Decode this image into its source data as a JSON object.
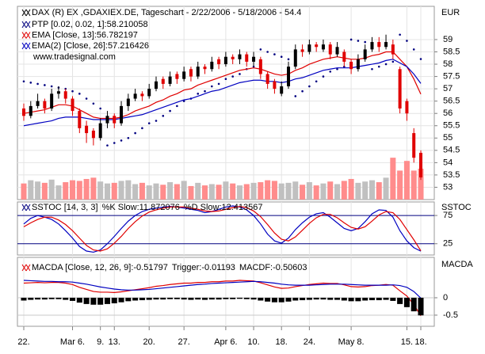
{
  "chart_data": [
    {
      "type": "candlestick",
      "title": "DAX (R) EX ,GDAXIEX.DE, Tageschart - 2/22/2006 - 5/18/2006 - 54.4",
      "watermark": "www.tradesignal.com",
      "unit_label": "EUR",
      "open": [
        56.2,
        55.9,
        56.3,
        56.5,
        56.2,
        56.8,
        56.9,
        56.6,
        56.1,
        55.5,
        55.3,
        55.0,
        55.6,
        55.9,
        55.6,
        56.3,
        56.6,
        56.8,
        56.7,
        57.0,
        57.4,
        57.2,
        57.6,
        57.4,
        57.8,
        57.5,
        57.9,
        57.8,
        58.2,
        58.0,
        58.3,
        58.2,
        58.4,
        58.1,
        58.2,
        57.6,
        57.3,
        56.8,
        57.1,
        57.9,
        58.6,
        58.5,
        58.8,
        58.6,
        58.8,
        58.4,
        58.5,
        58.1,
        57.8,
        58.2,
        58.6,
        58.9,
        58.7,
        58.8,
        57.8,
        56.5,
        55.2,
        54.4
      ],
      "high": [
        56.4,
        56.5,
        56.8,
        56.6,
        57.0,
        57.1,
        57.0,
        56.7,
        56.2,
        55.7,
        55.4,
        55.8,
        56.1,
        56.0,
        56.5,
        56.8,
        57.0,
        56.9,
        57.2,
        57.5,
        57.5,
        57.7,
        57.7,
        57.9,
        57.9,
        58.1,
        58.0,
        58.3,
        58.3,
        58.5,
        58.4,
        58.6,
        58.5,
        58.5,
        58.3,
        57.7,
        57.4,
        57.3,
        58.1,
        58.8,
        58.8,
        59.0,
        58.9,
        59.0,
        58.9,
        58.9,
        58.6,
        58.2,
        58.4,
        58.8,
        59.1,
        59.1,
        59.2,
        59.0,
        57.9,
        56.6,
        55.4,
        54.5
      ],
      "low": [
        55.7,
        55.8,
        56.2,
        56.0,
        56.1,
        56.6,
        56.4,
        55.9,
        55.2,
        54.8,
        54.7,
        54.9,
        55.4,
        55.4,
        55.5,
        56.1,
        56.5,
        56.5,
        56.6,
        56.9,
        57.0,
        57.1,
        57.2,
        57.3,
        57.3,
        57.4,
        57.6,
        57.7,
        57.8,
        57.9,
        58.0,
        58.0,
        57.9,
        57.9,
        57.4,
        57.0,
        56.8,
        56.7,
        57.0,
        57.8,
        58.3,
        58.4,
        58.5,
        58.5,
        58.2,
        58.3,
        57.9,
        57.6,
        57.7,
        58.1,
        58.5,
        58.5,
        58.6,
        58.2,
        56.0,
        55.7,
        54.0,
        53.3
      ],
      "close": [
        55.9,
        56.3,
        56.5,
        56.2,
        56.8,
        56.9,
        56.6,
        56.1,
        55.4,
        55.2,
        55.0,
        55.6,
        55.9,
        55.6,
        56.3,
        56.6,
        56.8,
        56.7,
        57.0,
        57.3,
        57.2,
        57.5,
        57.4,
        57.7,
        57.5,
        57.9,
        57.8,
        58.1,
        58.0,
        58.3,
        58.2,
        58.4,
        58.1,
        58.3,
        57.6,
        57.2,
        57.0,
        57.1,
        57.9,
        58.6,
        58.5,
        58.8,
        58.7,
        58.8,
        58.4,
        58.7,
        58.1,
        57.8,
        58.2,
        58.6,
        58.9,
        58.7,
        58.9,
        58.4,
        56.2,
        56.0,
        54.2,
        53.4
      ],
      "up_color": "#000000",
      "down_color": "#e00000",
      "volume": [
        2.5,
        3.0,
        2.8,
        2.6,
        3.1,
        2.2,
        2.7,
        3.0,
        2.9,
        3.2,
        3.4,
        2.8,
        2.5,
        2.6,
        2.9,
        3.0,
        2.4,
        2.6,
        2.2,
        2.5,
        2.3,
        2.7,
        2.4,
        2.9,
        2.1,
        2.6,
        2.2,
        2.4,
        2.3,
        2.8,
        2.5,
        2.2,
        2.4,
        2.6,
        2.7,
        3.0,
        2.9,
        2.5,
        2.6,
        2.8,
        2.3,
        2.7,
        2.2,
        2.5,
        2.8,
        2.4,
        2.9,
        3.2,
        2.6,
        2.8,
        3.0,
        2.7,
        3.4,
        6.5,
        4.5,
        6.0,
        4.5,
        4.8
      ],
      "volume_lim": [
        0,
        30
      ],
      "volume_up_color": "#c0c0c0",
      "volume_down_color": "#ff8c8c",
      "series": [
        {
          "name": "PTP [0.02, 0.02, 1]:58.210058",
          "style": "dots",
          "color": "#000080",
          "values": [
            57.3,
            57.25,
            57.2,
            57.15,
            57.1,
            57.05,
            57.0,
            56.9,
            56.8,
            56.6,
            56.4,
            56.2,
            54.7,
            54.8,
            54.9,
            55.0,
            55.2,
            55.4,
            55.6,
            55.7,
            55.9,
            56.1,
            56.3,
            56.5,
            56.6,
            56.8,
            56.9,
            57.1,
            57.2,
            57.4,
            57.5,
            57.6,
            57.8,
            57.9,
            58.6,
            58.5,
            58.4,
            58.3,
            58.2,
            56.7,
            56.9,
            57.1,
            57.3,
            57.5,
            57.7,
            57.8,
            57.9,
            59.0,
            58.95,
            58.9,
            57.8,
            57.9,
            58.0,
            58.1,
            59.2,
            58.95,
            58.6,
            58.210058
          ]
        },
        {
          "name": "EMA [Close, 13]:56.782197",
          "style": "line",
          "color": "#e00000",
          "values": [
            56.0,
            56.05,
            56.1,
            56.15,
            56.25,
            56.35,
            56.35,
            56.3,
            56.15,
            56.0,
            55.85,
            55.8,
            55.8,
            55.8,
            55.85,
            55.95,
            56.1,
            56.2,
            56.3,
            56.45,
            56.55,
            56.7,
            56.8,
            56.95,
            57.0,
            57.15,
            57.25,
            57.35,
            57.45,
            57.55,
            57.65,
            57.75,
            57.8,
            57.85,
            57.8,
            57.7,
            57.6,
            57.55,
            57.6,
            57.75,
            57.85,
            58.0,
            58.1,
            58.2,
            58.25,
            58.3,
            58.25,
            58.2,
            58.2,
            58.25,
            58.35,
            58.4,
            58.5,
            58.5,
            58.2,
            57.9,
            57.4,
            56.782197
          ]
        },
        {
          "name": "EMA(2) [Close, 26]:57.216426",
          "style": "line",
          "color": "#0000c0",
          "values": [
            55.5,
            55.55,
            55.6,
            55.65,
            55.7,
            55.8,
            55.85,
            55.85,
            55.85,
            55.8,
            55.75,
            55.75,
            55.75,
            55.75,
            55.8,
            55.85,
            55.9,
            55.95,
            56.05,
            56.15,
            56.25,
            56.35,
            56.45,
            56.55,
            56.6,
            56.7,
            56.8,
            56.9,
            56.95,
            57.05,
            57.15,
            57.25,
            57.3,
            57.35,
            57.35,
            57.3,
            57.3,
            57.25,
            57.3,
            57.4,
            57.45,
            57.55,
            57.65,
            57.75,
            57.8,
            57.85,
            57.85,
            57.85,
            57.9,
            57.95,
            58.0,
            58.05,
            58.15,
            58.2,
            58.05,
            57.9,
            57.6,
            57.216426
          ]
        }
      ],
      "ylim": [
        52.5,
        60.35
      ],
      "yticks": [
        53,
        53.5,
        54,
        54.5,
        55,
        55.5,
        56,
        56.5,
        57,
        57.5,
        58,
        58.5,
        59
      ],
      "grid": true,
      "title_color": "#000000",
      "grid_color": "#e4e4e4"
    },
    {
      "type": "line",
      "title": "SSTOC [14, 3, 3]",
      "title_color": "#000080",
      "label": "SSTOC",
      "series": [
        {
          "name": "%K Slow:11.872076",
          "color": "#0000c0",
          "values": [
            60,
            70,
            75,
            72,
            68,
            60,
            48,
            35,
            20,
            12,
            10,
            14,
            25,
            38,
            52,
            65,
            75,
            82,
            86,
            88,
            90,
            91,
            90,
            88,
            86,
            84,
            80,
            82,
            86,
            90,
            92,
            90,
            85,
            75,
            60,
            42,
            30,
            26,
            35,
            50,
            62,
            72,
            78,
            80,
            72,
            62,
            52,
            48,
            52,
            64,
            78,
            85,
            84,
            72,
            48,
            30,
            18,
            11.872076
          ]
        },
        {
          "name": "%D Slow:12.413567",
          "color": "#e00000",
          "values": [
            55,
            62,
            68,
            72,
            72,
            67,
            59,
            48,
            35,
            22,
            14,
            12,
            16,
            26,
            38,
            52,
            64,
            74,
            81,
            85,
            88,
            90,
            90,
            90,
            88,
            86,
            83,
            82,
            83,
            86,
            89,
            91,
            89,
            83,
            73,
            59,
            44,
            33,
            30,
            37,
            49,
            61,
            71,
            77,
            77,
            71,
            62,
            54,
            51,
            55,
            65,
            76,
            82,
            80,
            68,
            50,
            32,
            12.413567
          ]
        }
      ],
      "ylim": [
        5,
        99
      ],
      "yticks": [
        25,
        75
      ],
      "grid": true,
      "grid_color": "#000080"
    },
    {
      "type": "macd",
      "label": "MACDA",
      "series": [
        {
          "name": "MACDA [Close, 12, 26, 9]:-0.51797",
          "style": "line",
          "color": "#e00000",
          "values": [
            0.42,
            0.43,
            0.44,
            0.43,
            0.44,
            0.44,
            0.42,
            0.38,
            0.3,
            0.24,
            0.18,
            0.16,
            0.16,
            0.15,
            0.17,
            0.2,
            0.23,
            0.26,
            0.29,
            0.33,
            0.35,
            0.38,
            0.4,
            0.42,
            0.42,
            0.44,
            0.44,
            0.46,
            0.46,
            0.48,
            0.48,
            0.5,
            0.49,
            0.48,
            0.43,
            0.37,
            0.31,
            0.27,
            0.28,
            0.32,
            0.35,
            0.38,
            0.4,
            0.42,
            0.41,
            0.41,
            0.37,
            0.32,
            0.31,
            0.32,
            0.35,
            0.36,
            0.38,
            0.36,
            0.2,
            0.05,
            -0.2,
            -0.51797
          ]
        },
        {
          "name": "Trigger:-0.01193",
          "style": "line",
          "color": "#0000c0",
          "legend_color": "#000000",
          "values": [
            0.5,
            0.49,
            0.48,
            0.47,
            0.47,
            0.46,
            0.46,
            0.45,
            0.42,
            0.39,
            0.35,
            0.31,
            0.28,
            0.25,
            0.23,
            0.22,
            0.22,
            0.23,
            0.24,
            0.26,
            0.28,
            0.3,
            0.32,
            0.34,
            0.36,
            0.38,
            0.39,
            0.41,
            0.42,
            0.43,
            0.44,
            0.45,
            0.46,
            0.47,
            0.46,
            0.44,
            0.42,
            0.39,
            0.37,
            0.36,
            0.36,
            0.36,
            0.37,
            0.38,
            0.39,
            0.39,
            0.39,
            0.38,
            0.37,
            0.36,
            0.36,
            0.36,
            0.36,
            0.37,
            0.35,
            0.3,
            0.18,
            -0.01193
          ]
        },
        {
          "name": "MACDF:-0.50603",
          "style": "bars",
          "color": "#000000",
          "values": [
            -0.08,
            -0.06,
            -0.05,
            -0.05,
            -0.04,
            -0.04,
            -0.06,
            -0.09,
            -0.14,
            -0.18,
            -0.2,
            -0.2,
            -0.18,
            -0.16,
            -0.13,
            -0.1,
            -0.08,
            -0.07,
            -0.06,
            -0.05,
            -0.05,
            -0.04,
            -0.04,
            -0.05,
            -0.06,
            -0.05,
            -0.06,
            -0.05,
            -0.05,
            -0.04,
            -0.04,
            -0.03,
            -0.04,
            -0.05,
            -0.08,
            -0.11,
            -0.13,
            -0.13,
            -0.11,
            -0.08,
            -0.07,
            -0.06,
            -0.05,
            -0.05,
            -0.06,
            -0.06,
            -0.08,
            -0.1,
            -0.1,
            -0.08,
            -0.07,
            -0.07,
            -0.06,
            -0.09,
            -0.18,
            -0.27,
            -0.39,
            -0.50603
          ]
        }
      ],
      "ylim": [
        -0.82,
        1.16
      ],
      "yticks": [
        0,
        -0.5
      ],
      "grid": true,
      "grid_color": "#c8c8c8",
      "categories": [
        "22.",
        null,
        null,
        null,
        null,
        null,
        null,
        "Mar 6.",
        null,
        null,
        null,
        "9.",
        null,
        "13.",
        null,
        null,
        null,
        null,
        "20.",
        null,
        null,
        null,
        null,
        "27.",
        null,
        null,
        null,
        null,
        null,
        "Apr 6.",
        null,
        null,
        null,
        "10.",
        null,
        null,
        null,
        "18.",
        null,
        null,
        null,
        "24.",
        null,
        null,
        null,
        null,
        null,
        "May 8.",
        null,
        null,
        null,
        null,
        null,
        null,
        null,
        "15.",
        null,
        "18."
      ]
    }
  ]
}
